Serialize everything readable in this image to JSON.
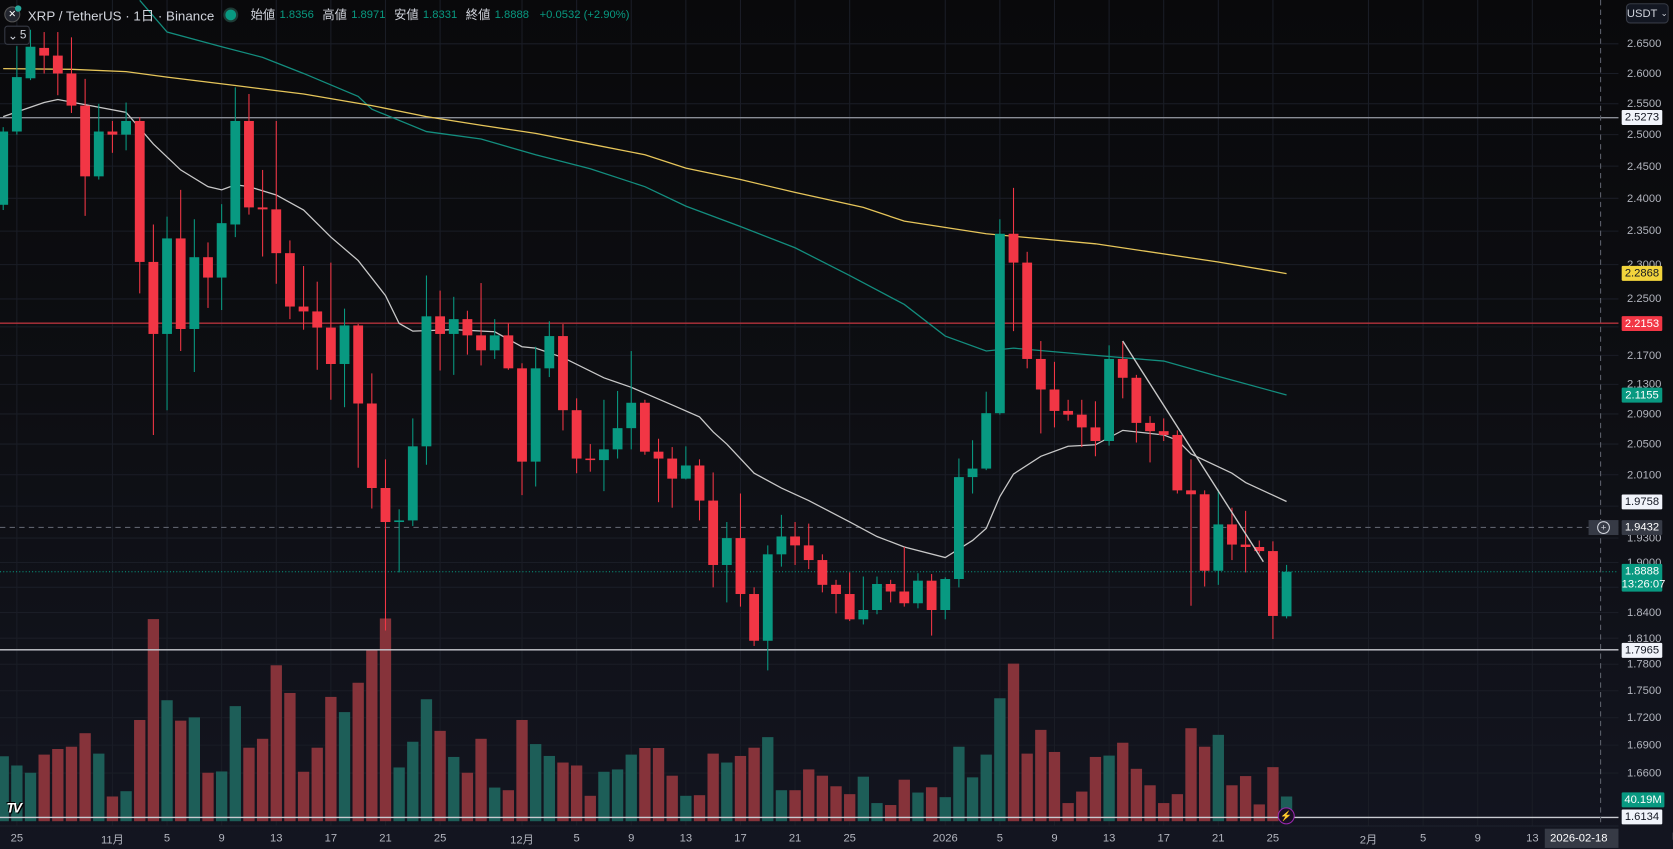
{
  "header": {
    "symbol_icon": "xrp-coin-icon",
    "title": "XRP / TetherUS · 1日 · Binance",
    "open_label": "始値",
    "open": "1.8356",
    "high_label": "高値",
    "high": "1.8971",
    "low_label": "安値",
    "low": "1.8331",
    "close_label": "終値",
    "close": "1.8888",
    "change": "+0.0532 (+2.90%)",
    "indicator_count": "5"
  },
  "currency": "USDT",
  "colors": {
    "up": "#089981",
    "down": "#f23645",
    "up_volume": "#1d5e58",
    "down_volume": "#86333a",
    "ma_fast": "#c8c8c8",
    "ma_mid": "#138d7e",
    "ma_slow": "#e6c55a"
  },
  "price_ticks": [
    "2.6500",
    "2.6000",
    "2.5500",
    "2.5000",
    "2.4500",
    "2.4000",
    "2.3500",
    "2.3000",
    "2.2500",
    "2.1700",
    "2.1300",
    "2.0900",
    "2.0500",
    "2.0100",
    "1.9300",
    "1.9000",
    "1.8400",
    "1.8100",
    "1.7800",
    "1.7500",
    "1.7200",
    "1.6900",
    "1.6600"
  ],
  "price_badges": [
    {
      "value": "2.5273",
      "bg": "#f0f3fa",
      "fg": "#131722"
    },
    {
      "value": "2.2868",
      "bg": "#f2d43c",
      "fg": "#131722"
    },
    {
      "value": "2.2153",
      "bg": "#f23645",
      "fg": "#ffffff"
    },
    {
      "value": "2.1155",
      "bg": "#089981",
      "fg": "#ffffff"
    },
    {
      "value": "1.9758",
      "bg": "#f0f3fa",
      "fg": "#131722"
    },
    {
      "value": "1.9432",
      "bg": "#363a45",
      "fg": "#ffffff"
    },
    {
      "value": "1.7965",
      "bg": "#f0f3fa",
      "fg": "#131722"
    },
    {
      "value": "1.6134",
      "bg": "#f0f3fa",
      "fg": "#131722"
    }
  ],
  "last_price": {
    "value": "1.8888",
    "countdown": "13:26:07"
  },
  "volume_badge": "40.19M",
  "crosshair": {
    "price": "1.9432",
    "date": "2026-02-18 (水)",
    "day_index": 117
  },
  "time_labels": [
    {
      "text": "25",
      "i": 1
    },
    {
      "text": "11月",
      "i": 8
    },
    {
      "text": "5",
      "i": 12
    },
    {
      "text": "9",
      "i": 16
    },
    {
      "text": "13",
      "i": 20
    },
    {
      "text": "17",
      "i": 24
    },
    {
      "text": "21",
      "i": 28
    },
    {
      "text": "25",
      "i": 32
    },
    {
      "text": "12月",
      "i": 38
    },
    {
      "text": "5",
      "i": 42
    },
    {
      "text": "9",
      "i": 46
    },
    {
      "text": "13",
      "i": 50
    },
    {
      "text": "17",
      "i": 54
    },
    {
      "text": "21",
      "i": 58
    },
    {
      "text": "25",
      "i": 62
    },
    {
      "text": "2026",
      "i": 69
    },
    {
      "text": "5",
      "i": 73
    },
    {
      "text": "9",
      "i": 77
    },
    {
      "text": "13",
      "i": 81
    },
    {
      "text": "17",
      "i": 85
    },
    {
      "text": "21",
      "i": 89
    },
    {
      "text": "25",
      "i": 93
    },
    {
      "text": "2月",
      "i": 100
    },
    {
      "text": "5",
      "i": 104
    },
    {
      "text": "9",
      "i": 108
    },
    {
      "text": "13",
      "i": 112
    }
  ],
  "chart_data": {
    "type": "candlestick",
    "title": "XRP / TetherUS · 1日 · Binance",
    "scale": "log",
    "ylim": [
      1.6134,
      2.68
    ],
    "candles_ohlc": [
      [
        2.39,
        2.512,
        2.382,
        2.505
      ],
      [
        2.505,
        2.646,
        2.5,
        2.594
      ],
      [
        2.592,
        2.674,
        2.589,
        2.645
      ],
      [
        2.643,
        2.67,
        2.6,
        2.63
      ],
      [
        2.63,
        2.67,
        2.564,
        2.6
      ],
      [
        2.6,
        2.661,
        2.535,
        2.547
      ],
      [
        2.547,
        2.591,
        2.373,
        2.434
      ],
      [
        2.434,
        2.55,
        2.429,
        2.505
      ],
      [
        2.505,
        2.522,
        2.471,
        2.5
      ],
      [
        2.5,
        2.552,
        2.475,
        2.522
      ],
      [
        2.522,
        2.528,
        2.258,
        2.304
      ],
      [
        2.304,
        2.36,
        2.062,
        2.2
      ],
      [
        2.2,
        2.372,
        2.095,
        2.339
      ],
      [
        2.339,
        2.413,
        2.176,
        2.207
      ],
      [
        2.207,
        2.368,
        2.147,
        2.311
      ],
      [
        2.311,
        2.333,
        2.237,
        2.281
      ],
      [
        2.281,
        2.391,
        2.234,
        2.362
      ],
      [
        2.36,
        2.577,
        2.341,
        2.522
      ],
      [
        2.522,
        2.566,
        2.375,
        2.386
      ],
      [
        2.386,
        2.444,
        2.312,
        2.383
      ],
      [
        2.383,
        2.522,
        2.272,
        2.317
      ],
      [
        2.317,
        2.336,
        2.221,
        2.239
      ],
      [
        2.239,
        2.298,
        2.206,
        2.232
      ],
      [
        2.232,
        2.275,
        2.15,
        2.209
      ],
      [
        2.209,
        2.303,
        2.109,
        2.158
      ],
      [
        2.158,
        2.236,
        2.099,
        2.212
      ],
      [
        2.212,
        2.214,
        2.019,
        2.104
      ],
      [
        2.104,
        2.145,
        1.967,
        1.993
      ],
      [
        1.993,
        2.03,
        1.819,
        1.95
      ],
      [
        1.95,
        1.966,
        1.888,
        1.952
      ],
      [
        1.952,
        2.084,
        1.945,
        2.047
      ],
      [
        2.047,
        2.284,
        2.023,
        2.225
      ],
      [
        2.225,
        2.262,
        2.149,
        2.2
      ],
      [
        2.2,
        2.253,
        2.143,
        2.221
      ],
      [
        2.221,
        2.233,
        2.171,
        2.198
      ],
      [
        2.198,
        2.273,
        2.156,
        2.177
      ],
      [
        2.177,
        2.221,
        2.165,
        2.198
      ],
      [
        2.198,
        2.215,
        2.15,
        2.152
      ],
      [
        2.152,
        2.159,
        1.984,
        2.027
      ],
      [
        2.027,
        2.182,
        1.995,
        2.152
      ],
      [
        2.152,
        2.218,
        2.14,
        2.197
      ],
      [
        2.197,
        2.214,
        2.068,
        2.095
      ],
      [
        2.095,
        2.111,
        2.012,
        2.031
      ],
      [
        2.031,
        2.05,
        2.014,
        2.029
      ],
      [
        2.029,
        2.109,
        1.989,
        2.043
      ],
      [
        2.043,
        2.121,
        2.031,
        2.071
      ],
      [
        2.071,
        2.176,
        2.043,
        2.105
      ],
      [
        2.105,
        2.109,
        2.036,
        2.04
      ],
      [
        2.04,
        2.057,
        1.975,
        2.031
      ],
      [
        2.031,
        2.046,
        1.968,
        2.005
      ],
      [
        2.005,
        2.047,
        2.004,
        2.022
      ],
      [
        2.022,
        2.03,
        1.952,
        1.977
      ],
      [
        1.977,
        2.013,
        1.87,
        1.897
      ],
      [
        1.897,
        1.95,
        1.852,
        1.93
      ],
      [
        1.93,
        1.986,
        1.847,
        1.862
      ],
      [
        1.862,
        1.87,
        1.801,
        1.807
      ],
      [
        1.807,
        1.921,
        1.773,
        1.91
      ],
      [
        1.91,
        1.959,
        1.895,
        1.932
      ],
      [
        1.932,
        1.95,
        1.897,
        1.921
      ],
      [
        1.921,
        1.948,
        1.892,
        1.903
      ],
      [
        1.903,
        1.91,
        1.864,
        1.873
      ],
      [
        1.873,
        1.879,
        1.839,
        1.862
      ],
      [
        1.862,
        1.888,
        1.83,
        1.832
      ],
      [
        1.832,
        1.883,
        1.826,
        1.843
      ],
      [
        1.843,
        1.883,
        1.838,
        1.874
      ],
      [
        1.874,
        1.879,
        1.852,
        1.865
      ],
      [
        1.865,
        1.919,
        1.847,
        1.851
      ],
      [
        1.851,
        1.887,
        1.845,
        1.878
      ],
      [
        1.878,
        1.886,
        1.813,
        1.843
      ],
      [
        1.843,
        1.882,
        1.832,
        1.88
      ],
      [
        1.88,
        2.031,
        1.87,
        2.007
      ],
      [
        2.007,
        2.055,
        1.986,
        2.018
      ],
      [
        2.018,
        2.12,
        2.016,
        2.091
      ],
      [
        2.091,
        2.368,
        2.089,
        2.346
      ],
      [
        2.346,
        2.416,
        2.204,
        2.303
      ],
      [
        2.303,
        2.319,
        2.152,
        2.165
      ],
      [
        2.165,
        2.19,
        2.064,
        2.123
      ],
      [
        2.123,
        2.161,
        2.072,
        2.094
      ],
      [
        2.094,
        2.109,
        2.081,
        2.089
      ],
      [
        2.089,
        2.109,
        2.046,
        2.072
      ],
      [
        2.072,
        2.107,
        2.034,
        2.054
      ],
      [
        2.054,
        2.184,
        2.048,
        2.165
      ],
      [
        2.165,
        2.19,
        2.111,
        2.139
      ],
      [
        2.139,
        2.143,
        2.052,
        2.078
      ],
      [
        2.078,
        2.087,
        2.026,
        2.067
      ],
      [
        2.067,
        2.084,
        2.054,
        2.062
      ],
      [
        2.062,
        2.068,
        1.986,
        1.99
      ],
      [
        1.99,
        2.03,
        1.848,
        1.985
      ],
      [
        1.985,
        1.99,
        1.871,
        1.89
      ],
      [
        1.89,
        1.991,
        1.873,
        1.947
      ],
      [
        1.947,
        1.968,
        1.903,
        1.922
      ],
      [
        1.922,
        1.964,
        1.888,
        1.919
      ],
      [
        1.919,
        1.927,
        1.911,
        1.914
      ],
      [
        1.914,
        1.926,
        1.809,
        1.836
      ],
      [
        1.8356,
        1.8971,
        1.8331,
        1.8888
      ]
    ],
    "volume_millions": [
      105.6,
      90.6,
      78.8,
      108.3,
      117.4,
      121.1,
      143.1,
      109.9,
      40.2,
      48.8,
      164.6,
      328.6,
      196.7,
      163.5,
      168.8,
      78.8,
      80.9,
      187.1,
      119.5,
      134.0,
      253.5,
      208.5,
      80.4,
      119.5,
      202.1,
      177.4,
      225.1,
      278.7,
      329.6,
      87.4,
      129.2,
      198.3,
      146.9,
      104.5,
      78.8,
      134.0,
      54.7,
      50.4,
      164.6,
      125.4,
      106.1,
      95.4,
      90.6,
      41.3,
      80.4,
      84.2,
      108.3,
      119.0,
      119.0,
      74.0,
      41.3,
      42.3,
      109.9,
      95.4,
      106.1,
      119.5,
      136.7,
      50.4,
      50.4,
      84.2,
      74.0,
      56.8,
      44.0,
      72.4,
      29.5,
      26.3,
      67.5,
      46.6,
      55.2,
      39.1,
      121.1,
      71.3,
      108.3,
      199.9,
      256.2,
      109.9,
      148.5,
      112.6,
      29.5,
      48.2,
      104.5,
      106.7,
      127.6,
      85.2,
      58.4,
      29.5,
      44.0,
      151.2,
      121.1,
      140.4,
      58.4,
      73.4,
      27.3,
      87.9,
      40.19
    ],
    "moving_averages": [
      {
        "name": "ma-fast",
        "color": "#c8c8c8",
        "points": [
          [
            0,
            2.529
          ],
          [
            3,
            2.552
          ],
          [
            4,
            2.557
          ],
          [
            9,
            2.536
          ],
          [
            11,
            2.485
          ],
          [
            13,
            2.444
          ],
          [
            15,
            2.418
          ],
          [
            16,
            2.413
          ],
          [
            17,
            2.421
          ],
          [
            18,
            2.418
          ],
          [
            20,
            2.405
          ],
          [
            22,
            2.382
          ],
          [
            24,
            2.341
          ],
          [
            26,
            2.306
          ],
          [
            28,
            2.255
          ],
          [
            29,
            2.215
          ],
          [
            30,
            2.204
          ],
          [
            33,
            2.206
          ],
          [
            36,
            2.203
          ],
          [
            38,
            2.182
          ],
          [
            39,
            2.18
          ],
          [
            41,
            2.167
          ],
          [
            44,
            2.139
          ],
          [
            46,
            2.126
          ],
          [
            49,
            2.102
          ],
          [
            51,
            2.086
          ],
          [
            52,
            2.066
          ],
          [
            53,
            2.05
          ],
          [
            55,
            2.012
          ],
          [
            57,
            1.993
          ],
          [
            59,
            1.977
          ],
          [
            62,
            1.95
          ],
          [
            64,
            1.932
          ],
          [
            66,
            1.919
          ],
          [
            69,
            1.906
          ],
          [
            71,
            1.927
          ],
          [
            72,
            1.942
          ],
          [
            73,
            1.982
          ],
          [
            74,
            2.011
          ],
          [
            76,
            2.034
          ],
          [
            78,
            2.047
          ],
          [
            80,
            2.049
          ],
          [
            82,
            2.068
          ],
          [
            85,
            2.062
          ],
          [
            86,
            2.055
          ],
          [
            87,
            2.037
          ],
          [
            90,
            2.012
          ],
          [
            91,
            2.0
          ],
          [
            94,
            1.9758
          ]
        ]
      },
      {
        "name": "ma-mid",
        "color": "#138d7e",
        "points": [
          [
            10,
            2.725
          ],
          [
            12,
            2.67
          ],
          [
            16,
            2.645
          ],
          [
            19,
            2.627
          ],
          [
            22,
            2.6
          ],
          [
            26,
            2.562
          ],
          [
            27,
            2.541
          ],
          [
            31,
            2.505
          ],
          [
            35,
            2.493
          ],
          [
            39,
            2.468
          ],
          [
            43,
            2.446
          ],
          [
            47,
            2.418
          ],
          [
            50,
            2.388
          ],
          [
            54,
            2.357
          ],
          [
            58,
            2.325
          ],
          [
            62,
            2.284
          ],
          [
            66,
            2.242
          ],
          [
            69,
            2.197
          ],
          [
            72,
            2.176
          ],
          [
            74,
            2.18
          ],
          [
            80,
            2.17
          ],
          [
            85,
            2.162
          ],
          [
            89,
            2.141
          ],
          [
            94,
            2.1155
          ]
        ]
      },
      {
        "name": "ma-slow",
        "color": "#e6c55a",
        "points": [
          [
            0,
            2.608
          ],
          [
            5,
            2.607
          ],
          [
            9,
            2.603
          ],
          [
            12,
            2.594
          ],
          [
            17,
            2.58
          ],
          [
            22,
            2.566
          ],
          [
            27,
            2.547
          ],
          [
            31,
            2.529
          ],
          [
            35,
            2.515
          ],
          [
            39,
            2.502
          ],
          [
            43,
            2.485
          ],
          [
            47,
            2.468
          ],
          [
            50,
            2.447
          ],
          [
            54,
            2.429
          ],
          [
            58,
            2.409
          ],
          [
            63,
            2.386
          ],
          [
            66,
            2.365
          ],
          [
            72,
            2.346
          ],
          [
            80,
            2.331
          ],
          [
            89,
            2.304
          ],
          [
            94,
            2.2868
          ]
        ]
      }
    ],
    "trendline": [
      [
        82,
        2.19
      ],
      [
        92.3,
        1.901
      ]
    ],
    "horizontal_lines": [
      {
        "price": 2.5273,
        "color": "#8a8d96"
      },
      {
        "price": 2.2153,
        "color": "#b2323c"
      },
      {
        "price": 1.7965,
        "color": "#c9cbd1"
      },
      {
        "price": 1.6134,
        "color": "#c9cbd1"
      }
    ]
  }
}
